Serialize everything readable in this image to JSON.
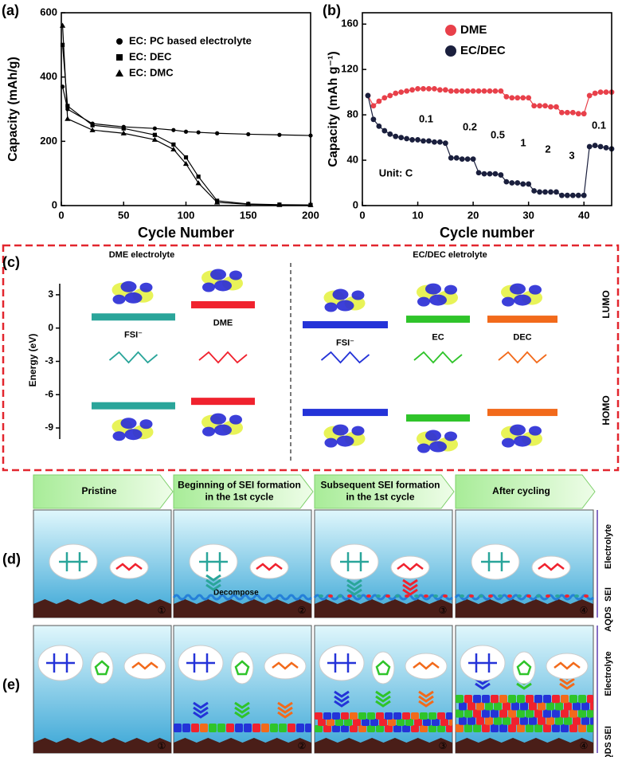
{
  "chart_data": [
    {
      "type": "line",
      "panel": "(a)",
      "xlabel": "Cycle Number",
      "ylabel": "Capacity (mAh/g)",
      "x": [
        1,
        5,
        25,
        50,
        75,
        90,
        100,
        110,
        125,
        150,
        175,
        200
      ],
      "series": [
        {
          "name": "EC: PC based electrolyte",
          "color": "#000000",
          "marker": "circle",
          "values": [
            370,
            300,
            255,
            245,
            240,
            235,
            230,
            228,
            225,
            222,
            220,
            218
          ]
        },
        {
          "name": "EC: DEC",
          "color": "#000000",
          "marker": "square",
          "values": [
            500,
            310,
            250,
            240,
            220,
            190,
            150,
            90,
            15,
            5,
            3,
            2
          ]
        },
        {
          "name": "EC: DMC",
          "color": "#000000",
          "marker": "triangle",
          "values": [
            560,
            270,
            235,
            225,
            205,
            175,
            130,
            70,
            10,
            4,
            2,
            2
          ]
        }
      ],
      "xlim": [
        0,
        200
      ],
      "xticks": [
        0,
        50,
        100,
        150,
        200
      ],
      "ylim": [
        0,
        600
      ],
      "yticks": [
        0,
        200,
        400,
        600
      ],
      "legend": "upper-right"
    },
    {
      "type": "line",
      "panel": "(b)",
      "xlabel": "Cycle number",
      "ylabel": "Capacity (mAh g⁻¹)",
      "x": [
        1,
        2,
        3,
        4,
        5,
        6,
        7,
        8,
        9,
        10,
        11,
        12,
        13,
        14,
        15,
        16,
        17,
        18,
        19,
        20,
        21,
        22,
        23,
        24,
        25,
        26,
        27,
        28,
        29,
        30,
        31,
        32,
        33,
        34,
        35,
        36,
        37,
        38,
        39,
        40,
        41,
        42,
        43,
        44,
        45
      ],
      "series": [
        {
          "name": "DME",
          "color": "#e8404a",
          "marker": "circle",
          "values": [
            97,
            88,
            92,
            95,
            97,
            99,
            100,
            101,
            102,
            103,
            103,
            103,
            103,
            102,
            102,
            101,
            101,
            101,
            101,
            101,
            101,
            101,
            101,
            101,
            101,
            96,
            95,
            95,
            95,
            95,
            88,
            88,
            88,
            87,
            87,
            82,
            82,
            82,
            81,
            81,
            97,
            99,
            100,
            100,
            100
          ]
        },
        {
          "name": "EC/DEC",
          "color": "#1a1f3d",
          "marker": "circle",
          "values": [
            97,
            76,
            70,
            66,
            63,
            61,
            60,
            59,
            58,
            58,
            57,
            57,
            56,
            56,
            55,
            42,
            42,
            41,
            41,
            41,
            29,
            28,
            28,
            28,
            27,
            21,
            20,
            20,
            19,
            19,
            13,
            12,
            12,
            12,
            12,
            9,
            9,
            9,
            9,
            9,
            52,
            53,
            52,
            51,
            50
          ]
        }
      ],
      "annotations": [
        "0.1",
        "0.2",
        "0.5",
        "1",
        "2",
        "3",
        "0.1",
        "Unit: C"
      ],
      "xlim": [
        0,
        45
      ],
      "xticks": [
        0,
        10,
        20,
        30,
        40
      ],
      "ylim": [
        0,
        170
      ],
      "yticks": [
        0,
        40,
        80,
        120,
        160
      ],
      "legend": "upper-left"
    },
    {
      "type": "levels",
      "panel": "(c)",
      "ylabel": "Energy (eV)",
      "groups": [
        "DME electrolyte",
        "EC/DEC eletrolyte"
      ],
      "categories": [
        "FSI⁻",
        "DME",
        "FSI⁻",
        "EC",
        "DEC"
      ],
      "colors": [
        "#2aa59a",
        "#f0222e",
        "#2433d8",
        "#2fc42a",
        "#f26a1b"
      ],
      "series": [
        {
          "name": "LUMO",
          "values": [
            1.0,
            2.1,
            0.3,
            0.8,
            0.8
          ]
        },
        {
          "name": "HOMO",
          "values": [
            -7.0,
            -6.6,
            -7.6,
            -8.1,
            -7.6
          ]
        }
      ],
      "ylim": [
        -10,
        4
      ],
      "yticks": [
        3,
        0,
        -3,
        -6,
        -9
      ]
    }
  ],
  "stages": [
    [
      "Pristine"
    ],
    [
      "Beginning of SEI formation",
      "in the 1st cycle"
    ],
    [
      "Subsequent SEI formation",
      "in the 1st cycle"
    ],
    [
      "After cycling"
    ]
  ],
  "panel_d": {
    "label": "(d)",
    "annotation": "Decompose",
    "side_labels": [
      "Electrolyte",
      "SEI",
      "AQDS"
    ],
    "steps": [
      "①",
      "②",
      "③",
      "④"
    ]
  },
  "panel_e": {
    "label": "(e)",
    "side_labels": [
      "Electrolyte",
      "SEI",
      "AQDS"
    ],
    "steps": [
      "①",
      "②",
      "③",
      "④"
    ]
  }
}
